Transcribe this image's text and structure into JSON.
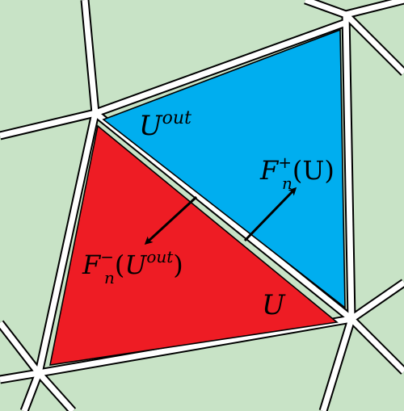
{
  "colors": {
    "background": "#c8e3c6",
    "cell_inner": "#ee1c24",
    "cell_outer": "#00aeef",
    "edges": "#ffffff",
    "outline": "#000000",
    "arrows": "#000000"
  },
  "labels": {
    "outer_state": {
      "base": "U",
      "sup": "out"
    },
    "inner_state": {
      "base": "U"
    },
    "flux_plus": {
      "base": "F",
      "sup": "+",
      "sub": "n",
      "arg": "(U)"
    },
    "flux_minus": {
      "base": "F",
      "sup": "−",
      "sub": "n",
      "arg_open": "(",
      "arg_base": "U",
      "arg_sup": "out",
      "arg_close": ")"
    }
  }
}
